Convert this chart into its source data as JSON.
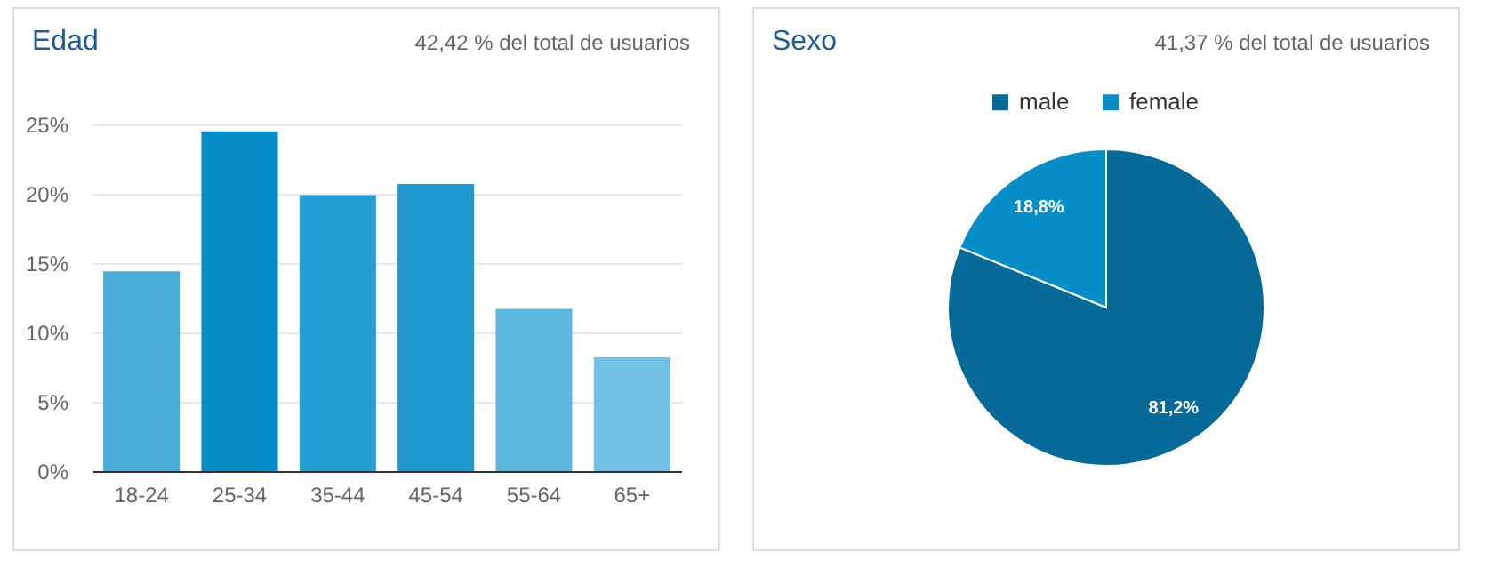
{
  "chart_data": [
    {
      "type": "bar",
      "title": "Edad",
      "subtitle": "42,42 % del total de usuarios",
      "categories": [
        "18-24",
        "25-34",
        "35-44",
        "45-54",
        "55-64",
        "65+"
      ],
      "values": [
        14.4,
        24.5,
        19.9,
        20.7,
        11.7,
        8.2
      ],
      "colors": [
        "#4aacd8",
        "#058dc7",
        "#249dd1",
        "#1e98cf",
        "#5db6de",
        "#72c0e3"
      ],
      "ylim": [
        0,
        25
      ],
      "yticks": [
        {
          "value": 0,
          "label": "0%"
        },
        {
          "value": 5,
          "label": "5%"
        },
        {
          "value": 10,
          "label": "10%"
        },
        {
          "value": 15,
          "label": "15%"
        },
        {
          "value": 20,
          "label": "20%"
        },
        {
          "value": 25,
          "label": "25%"
        }
      ],
      "grid": "y"
    },
    {
      "type": "pie",
      "title": "Sexo",
      "subtitle": "41,37 % del total de usuarios",
      "categories": [
        "male",
        "female"
      ],
      "values": [
        81.2,
        18.8
      ],
      "colors": [
        "#066a98",
        "#058dc7"
      ],
      "value_labels": [
        "81,2%",
        "18,8%"
      ],
      "legend": "top"
    }
  ]
}
